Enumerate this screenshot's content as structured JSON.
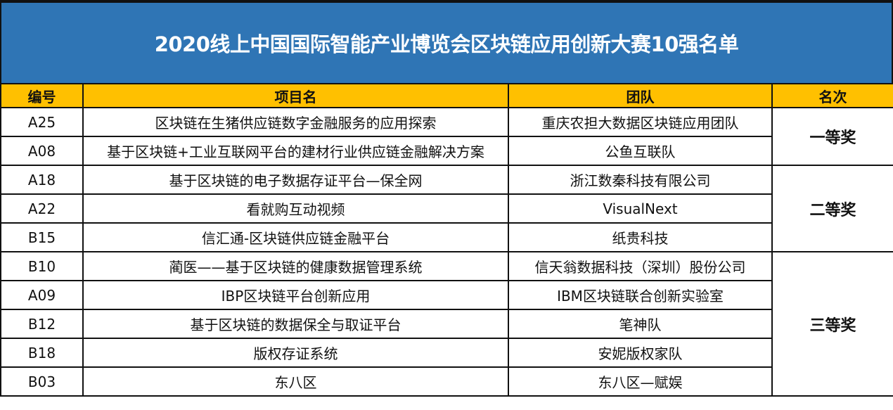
{
  "title": "2020线上中国国际智能产业博览会区块链应用创新大赛10强名单",
  "colors": {
    "title_bg": "#2F75B5",
    "header_bg": "#FFC000"
  },
  "headers": [
    "编号",
    "项目名",
    "团队",
    "名次"
  ],
  "rows": [
    {
      "id": "A25",
      "project": "区块链在生猪供应链数字金融服务的应用探索",
      "team": "重庆农担大数据区块链应用团队"
    },
    {
      "id": "A08",
      "project": "基于区块链+工业互联网平台的建材行业供应链金融解决方案",
      "team": "公鱼互联队"
    },
    {
      "id": "A18",
      "project": "基于区块链的电子数据存证平台—保全网",
      "team": "浙江数秦科技有限公司"
    },
    {
      "id": "A22",
      "project": "看就购互动视频",
      "team": "VisualNext"
    },
    {
      "id": "B15",
      "project": "信汇通-区块链供应链金融平台",
      "team": "纸贵科技"
    },
    {
      "id": "B10",
      "project": "蔺医——基于区块链的健康数据管理系统",
      "team": "信天翁数据科技（深圳）股份公司"
    },
    {
      "id": "A09",
      "project": "IBP区块链平台创新应用",
      "team": "IBM区块链联合创新实验室"
    },
    {
      "id": "B12",
      "project": "基于区块链的数据保全与取证平台",
      "team": "笔神队"
    },
    {
      "id": "B18",
      "project": "版权存证系统",
      "team": "安妮版权家队"
    },
    {
      "id": "B03",
      "project": "东八区",
      "team": "东八区—赋娱"
    }
  ],
  "awards": [
    "一等奖",
    "二等奖",
    "三等奖"
  ]
}
